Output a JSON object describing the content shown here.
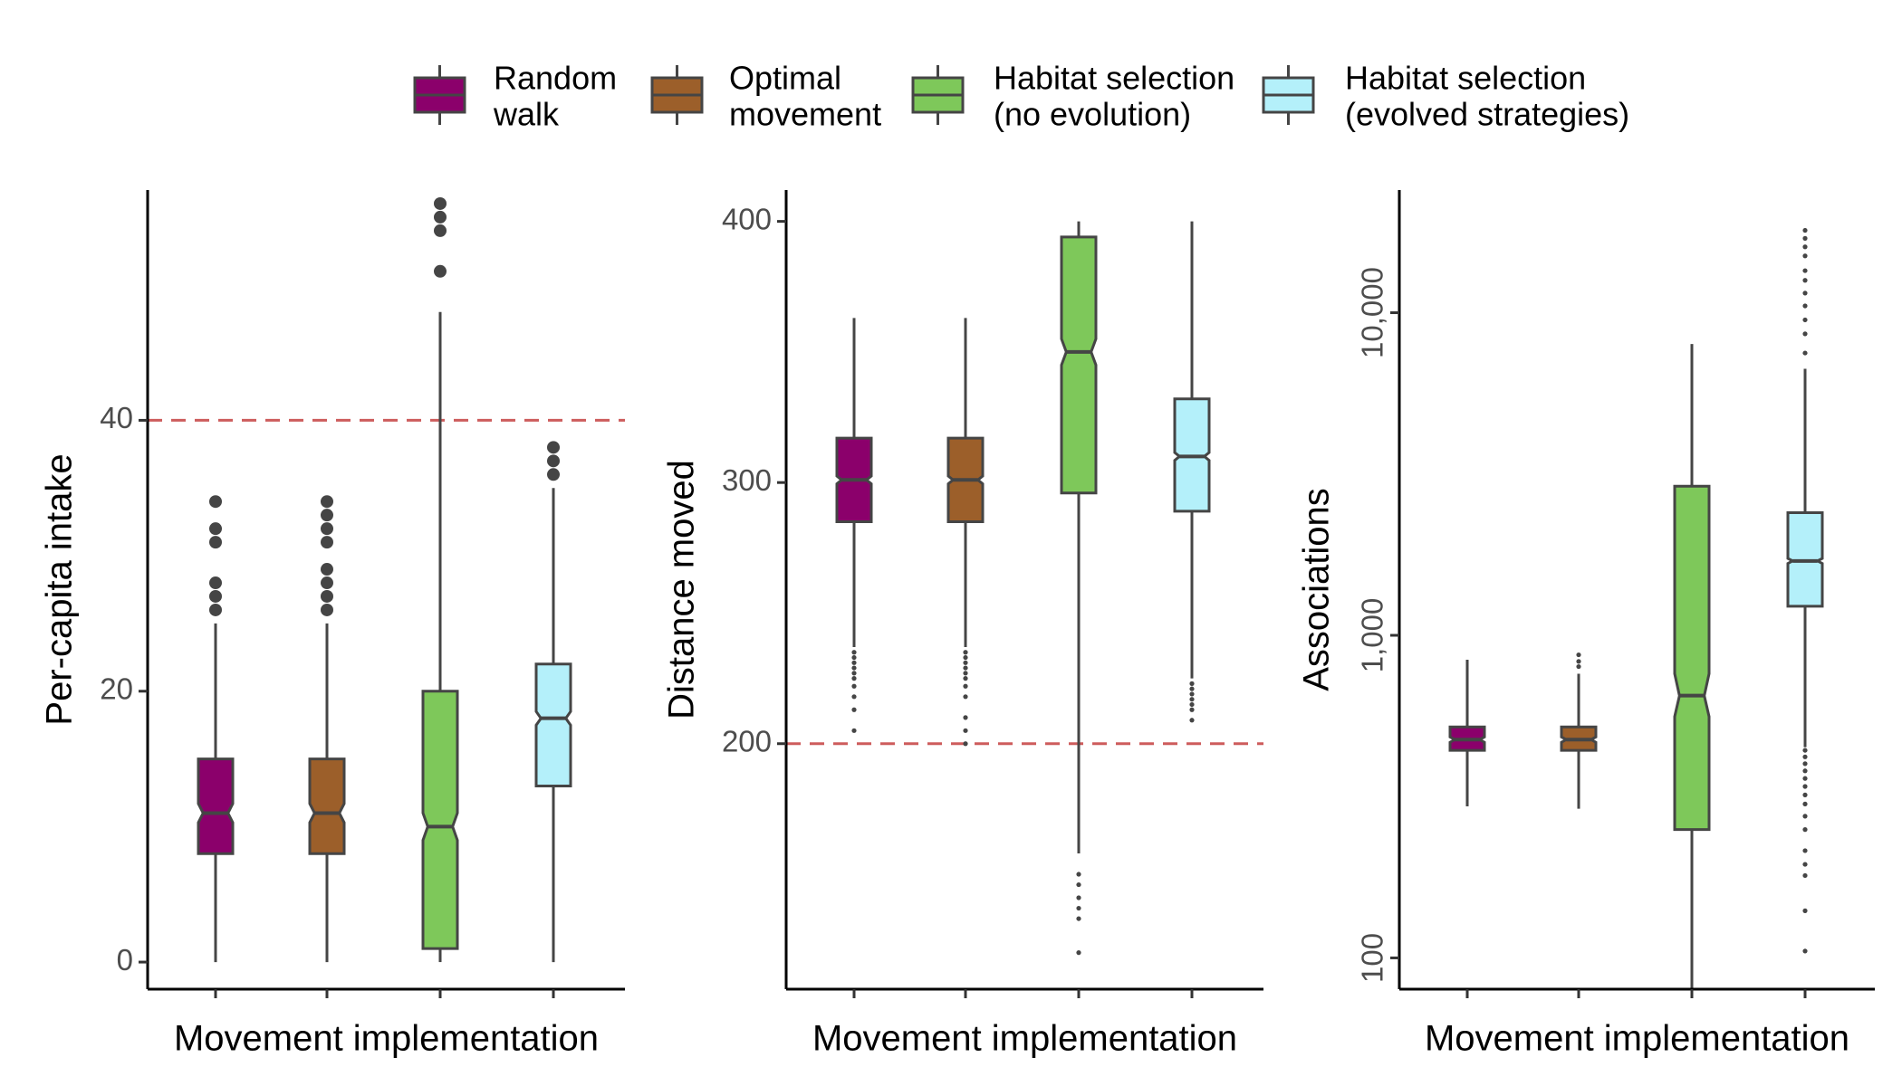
{
  "legend": {
    "placement": "top",
    "items": [
      {
        "lines": [
          "Random",
          "walk"
        ],
        "color": "#8B006B"
      },
      {
        "lines": [
          "Optimal",
          "movement"
        ],
        "color": "#9C5F2A"
      },
      {
        "lines": [
          "Habitat selection",
          "(no evolution)"
        ],
        "color": "#7EC85A"
      },
      {
        "lines": [
          "Habitat selection",
          "(evolved strategies)"
        ],
        "color": "#B4F0FA"
      }
    ]
  },
  "chart_data": [
    {
      "type": "box",
      "xlabel": "Movement implementation",
      "ylabel": "Per-capita intake",
      "yscale": "linear",
      "ylim": [
        -2,
        57
      ],
      "yticks": [
        0,
        20,
        40
      ],
      "ytick_labels": [
        "0",
        "20",
        "40"
      ],
      "refline": 40,
      "outlier_style": "large",
      "series": [
        {
          "q1": 8,
          "median": 11,
          "q3": 15,
          "notch": [
            10.3,
            11.7
          ],
          "whisker_low": 0,
          "whisker_high": 25,
          "outliers": [
            26,
            27,
            28,
            31,
            32,
            34
          ]
        },
        {
          "q1": 8,
          "median": 11,
          "q3": 15,
          "notch": [
            10.3,
            11.7
          ],
          "whisker_low": 0,
          "whisker_high": 25,
          "outliers": [
            26,
            27,
            28,
            29,
            31,
            32,
            33,
            34
          ]
        },
        {
          "q1": 1,
          "median": 10,
          "q3": 20,
          "notch": [
            9.0,
            11.0
          ],
          "whisker_low": 0,
          "whisker_high": 48,
          "outliers": [
            51,
            54,
            55,
            56
          ]
        },
        {
          "q1": 13,
          "median": 18,
          "q3": 22,
          "notch": [
            17.5,
            18.5
          ],
          "whisker_low": 0,
          "whisker_high": 35,
          "outliers": [
            36,
            37,
            38
          ]
        }
      ]
    },
    {
      "type": "box",
      "xlabel": "Movement implementation",
      "ylabel": "Distance moved",
      "yscale": "linear",
      "ylim": [
        106,
        412
      ],
      "yticks": [
        200,
        300,
        400
      ],
      "ytick_labels": [
        "200",
        "300",
        "400"
      ],
      "refline": 200,
      "outlier_style": "small",
      "series": [
        {
          "q1": 285,
          "median": 301,
          "q3": 317,
          "notch": [
            299.5,
            302.5
          ],
          "whisker_low": 237,
          "whisker_high": 363,
          "outliers": [
            235,
            233,
            231,
            229,
            227,
            225,
            222,
            218,
            213,
            205
          ]
        },
        {
          "q1": 285,
          "median": 301,
          "q3": 317,
          "notch": [
            299.5,
            302.5
          ],
          "whisker_low": 237,
          "whisker_high": 363,
          "outliers": [
            235,
            233,
            231,
            229,
            227,
            225,
            222,
            218,
            210,
            205,
            200
          ]
        },
        {
          "q1": 296,
          "median": 350,
          "q3": 394,
          "notch": [
            345,
            355
          ],
          "whisker_low": 158,
          "whisker_high": 400,
          "outliers": [
            150,
            146,
            141,
            137,
            133,
            120
          ]
        },
        {
          "q1": 289,
          "median": 310,
          "q3": 332,
          "notch": [
            308.5,
            311.5
          ],
          "whisker_low": 225,
          "whisker_high": 400,
          "outliers": [
            223,
            221,
            219,
            217,
            215,
            213,
            209
          ]
        }
      ]
    },
    {
      "type": "box",
      "xlabel": "Movement implementation",
      "ylabel": "Associations",
      "yscale": "log10",
      "ylim": [
        80,
        24000
      ],
      "yticks": [
        100,
        1000,
        10000
      ],
      "ytick_labels": [
        "100",
        "1,000",
        "10,000"
      ],
      "refline": null,
      "outlier_style": "small",
      "series": [
        {
          "q1": 440,
          "median": 475,
          "q3": 520,
          "notch": [
            466,
            484
          ],
          "whisker_low": 295,
          "whisker_high": 840,
          "outliers": []
        },
        {
          "q1": 440,
          "median": 475,
          "q3": 520,
          "notch": [
            466,
            484
          ],
          "whisker_low": 290,
          "whisker_high": 760,
          "outliers": [
            800,
            830,
            870
          ]
        },
        {
          "q1": 250,
          "median": 650,
          "q3": 2900,
          "notch": [
            560,
            760
          ],
          "whisker_low": 80,
          "whisker_high": 8000,
          "outliers": []
        },
        {
          "q1": 1230,
          "median": 1700,
          "q3": 2400,
          "notch": [
            1670,
            1730
          ],
          "whisker_low": 450,
          "whisker_high": 6700,
          "outliers": [
            105,
            140,
            180,
            195,
            215,
            250,
            275,
            300,
            320,
            340,
            360,
            380,
            400,
            420,
            440,
            7500,
            8600,
            9500,
            10500,
            11500,
            12600,
            13500,
            15000,
            16000,
            17000,
            18000
          ]
        }
      ]
    }
  ]
}
